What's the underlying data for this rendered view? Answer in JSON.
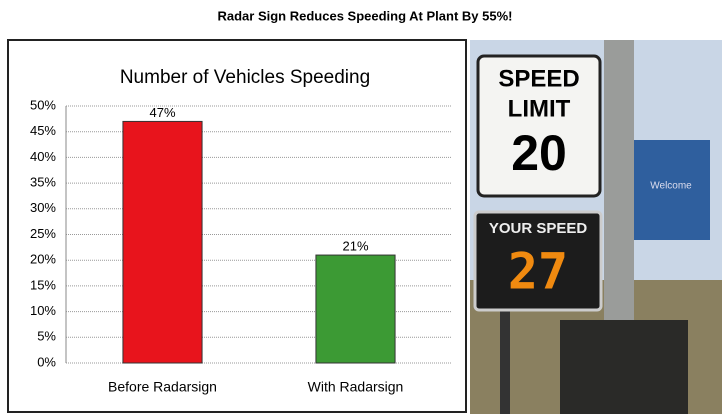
{
  "page_title": "Radar Sign Reduces Speeding At Plant By 55%!",
  "chart_data": {
    "type": "bar",
    "title": "Number of Vehicles Speeding",
    "categories": [
      "Before Radarsign",
      "With Radarsign"
    ],
    "values": [
      47,
      21
    ],
    "value_labels": [
      "47%",
      "21%"
    ],
    "colors": [
      "#e8141c",
      "#3c9a34"
    ],
    "ylim": [
      0,
      50
    ],
    "yticks": [
      {
        "value": 0,
        "label": "0%"
      },
      {
        "value": 5,
        "label": "5%"
      },
      {
        "value": 10,
        "label": "10%"
      },
      {
        "value": 15,
        "label": "15%"
      },
      {
        "value": 20,
        "label": "20%"
      },
      {
        "value": 25,
        "label": "25%"
      },
      {
        "value": 30,
        "label": "30%"
      },
      {
        "value": 35,
        "label": "35%"
      },
      {
        "value": 40,
        "label": "40%"
      },
      {
        "value": 45,
        "label": "45%"
      },
      {
        "value": 50,
        "label": "50%"
      }
    ],
    "grid": true
  },
  "photo": {
    "sign_line_1": "SPEED",
    "sign_line_2": "LIMIT",
    "sign_line_3": "20",
    "display_label": "YOUR SPEED",
    "display_value": "27",
    "building_sign": "Welcome"
  }
}
